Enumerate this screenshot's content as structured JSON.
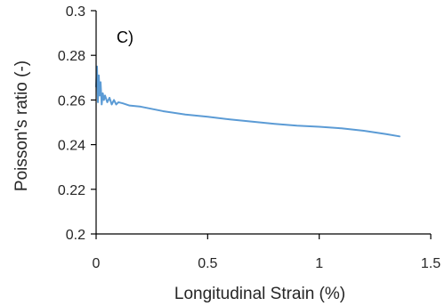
{
  "chart_data": {
    "type": "line",
    "panel_label": "C)",
    "xlabel": "Longitudinal Strain (%)",
    "ylabel": "Poisson's ratio (-)",
    "xlim": [
      0,
      1.5
    ],
    "ylim": [
      0.2,
      0.3
    ],
    "x_ticks": [
      "0",
      "0.5",
      "1",
      "1.5"
    ],
    "y_ticks": [
      "0.2",
      "0.22",
      "0.24",
      "0.26",
      "0.28",
      "0.3"
    ],
    "grid": false,
    "legend": "none",
    "series_color": "#5b9bd5",
    "series": [
      {
        "x": [
          0.0,
          0.004,
          0.008,
          0.012,
          0.016,
          0.02,
          0.025,
          0.03,
          0.035,
          0.04,
          0.05,
          0.06,
          0.07,
          0.08,
          0.09,
          0.1,
          0.12,
          0.15,
          0.2,
          0.25,
          0.3,
          0.4,
          0.5,
          0.6,
          0.7,
          0.8,
          0.9,
          1.0,
          1.1,
          1.2,
          1.3,
          1.36
        ],
        "y": [
          0.266,
          0.275,
          0.259,
          0.271,
          0.262,
          0.268,
          0.258,
          0.263,
          0.26,
          0.262,
          0.259,
          0.261,
          0.258,
          0.26,
          0.258,
          0.259,
          0.2585,
          0.2575,
          0.257,
          0.256,
          0.255,
          0.2535,
          0.2525,
          0.2513,
          0.2503,
          0.2493,
          0.2485,
          0.248,
          0.2473,
          0.2462,
          0.2447,
          0.2437
        ]
      }
    ]
  }
}
